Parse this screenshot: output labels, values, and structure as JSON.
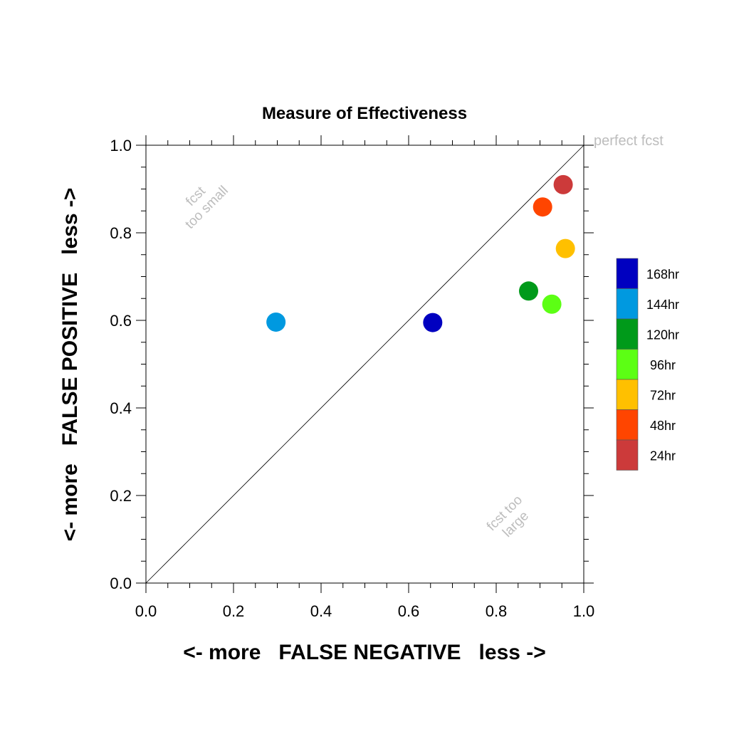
{
  "chart_data": {
    "type": "scatter",
    "title": "Measure of Effectiveness",
    "xlabel": "<- more   FALSE NEGATIVE   less ->",
    "ylabel": "<- more   FALSE POSITIVE   less ->",
    "xlim": [
      0,
      1
    ],
    "ylim": [
      0,
      1
    ],
    "x_ticks": [
      "0.0",
      "0.2",
      "0.4",
      "0.6",
      "0.8",
      "1.0"
    ],
    "y_ticks": [
      "0.0",
      "0.2",
      "0.4",
      "0.6",
      "0.8",
      "1.0"
    ],
    "grid": false,
    "legend_position": "right",
    "annotations": {
      "perfect": "perfect fcst",
      "too_small_line1": "fcst",
      "too_small_line2": "too small",
      "too_large_line1": "fcst too",
      "too_large_line2": "large"
    },
    "series": [
      {
        "name": "168hr",
        "color": "#0000c0",
        "x": 0.655,
        "y": 0.595
      },
      {
        "name": "144hr",
        "color": "#0099e0",
        "x": 0.297,
        "y": 0.596
      },
      {
        "name": "120hr",
        "color": "#009a1a",
        "x": 0.874,
        "y": 0.667
      },
      {
        "name": "96hr",
        "color": "#5cff14",
        "x": 0.927,
        "y": 0.637
      },
      {
        "name": "72hr",
        "color": "#ffc000",
        "x": 0.958,
        "y": 0.764
      },
      {
        "name": "48hr",
        "color": "#ff4500",
        "x": 0.906,
        "y": 0.859
      },
      {
        "name": "24hr",
        "color": "#cc3a3a",
        "x": 0.953,
        "y": 0.91
      }
    ]
  }
}
